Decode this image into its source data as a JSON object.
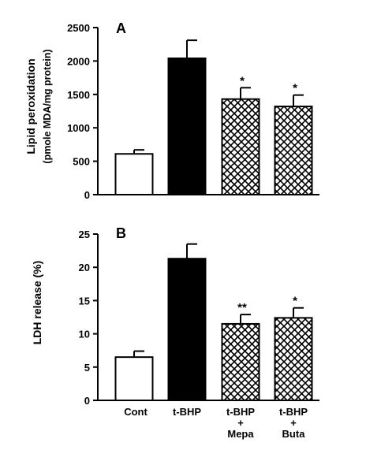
{
  "chart_data": [
    {
      "type": "bar",
      "panel_label": "A",
      "ylabel": "Lipid peroxidation",
      "ylabel_sub": "(pmole MDA/mg protein)",
      "ylim": [
        0,
        2500
      ],
      "yticks": [
        0,
        500,
        1000,
        1500,
        2000,
        2500
      ],
      "categories": [
        "Cont",
        "t-BHP",
        "t-BHP + Mepa",
        "t-BHP + Buta"
      ],
      "values": [
        610,
        2040,
        1430,
        1320
      ],
      "errors": [
        60,
        270,
        170,
        170
      ],
      "fills": [
        "open",
        "solid",
        "crosshatch",
        "crosshatch"
      ],
      "significance": [
        "",
        "",
        "*",
        "*"
      ]
    },
    {
      "type": "bar",
      "panel_label": "B",
      "ylabel": "LDH release (%)",
      "ylim": [
        0,
        25
      ],
      "yticks": [
        0,
        5,
        10,
        15,
        20,
        25
      ],
      "categories": [
        "Cont",
        "t-BHP",
        "t-BHP + Mepa",
        "t-BHP + Buta"
      ],
      "values": [
        6.5,
        21.3,
        11.5,
        12.4
      ],
      "errors": [
        0.9,
        2.2,
        1.4,
        1.5
      ],
      "fills": [
        "open",
        "solid",
        "crosshatch",
        "crosshatch"
      ],
      "significance": [
        "",
        "",
        "**",
        "*"
      ]
    }
  ],
  "xaxis": {
    "labels": [
      {
        "line1": "Cont",
        "line2": "",
        "line3": ""
      },
      {
        "line1": "t-BHP",
        "line2": "",
        "line3": ""
      },
      {
        "line1": "t-BHP",
        "line2": "+",
        "line3": "Mepa"
      },
      {
        "line1": "t-BHP",
        "line2": "+",
        "line3": "Buta"
      }
    ]
  }
}
